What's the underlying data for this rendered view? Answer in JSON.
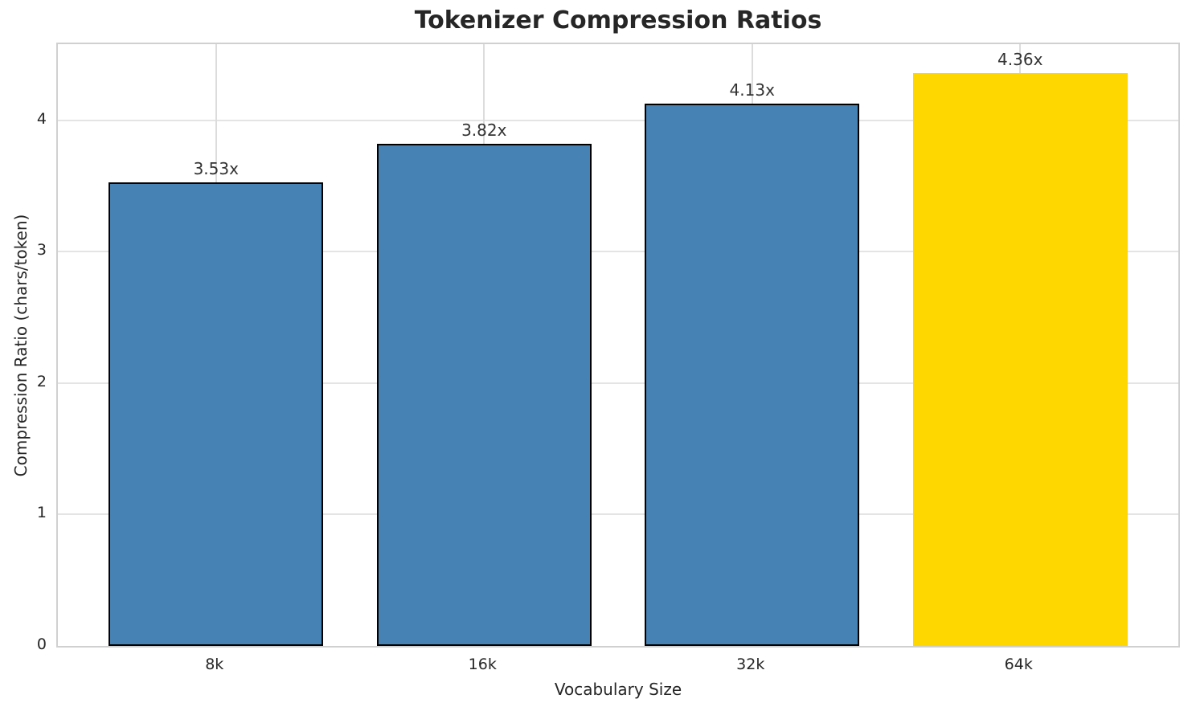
{
  "chart_data": {
    "type": "bar",
    "title": "Tokenizer Compression Ratios",
    "xlabel": "Vocabulary Size",
    "ylabel": "Compression Ratio (chars/token)",
    "categories": [
      "8k",
      "16k",
      "32k",
      "64k"
    ],
    "values": [
      3.53,
      3.82,
      4.13,
      4.36
    ],
    "bar_labels": [
      "3.53x",
      "3.82x",
      "4.13x",
      "4.36x"
    ],
    "bar_colors": [
      "#4682B4",
      "#4682B4",
      "#4682B4",
      "#FFD700"
    ],
    "bar_edge_colors": [
      "#000000",
      "#000000",
      "#000000",
      "none"
    ],
    "yticks": [
      "0",
      "1",
      "2",
      "3",
      "4"
    ],
    "ytick_values": [
      0,
      1,
      2,
      3,
      4
    ],
    "ylim": [
      0,
      4.58
    ],
    "grid": "both",
    "legend_position": "none",
    "colors": {
      "default_bar": "#4682B4",
      "highlight_bar": "#FFD700",
      "bar_edge": "#000000",
      "grid": "#e0e0e0",
      "spine": "#d0d0d0",
      "text": "#262626"
    }
  }
}
